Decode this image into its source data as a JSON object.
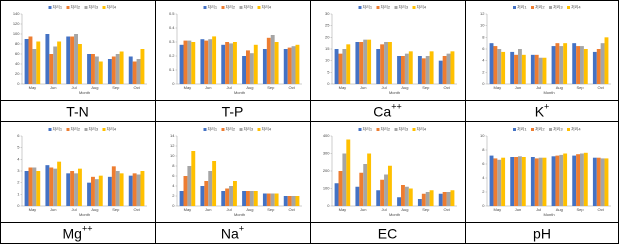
{
  "chart_data": [
    {
      "type": "bar",
      "title": "T-N",
      "x_label": "Month",
      "categories": [
        "May",
        "Jun",
        "Jul",
        "Aug",
        "Sep",
        "Oct"
      ],
      "ylim": [
        0,
        140
      ],
      "yticks": [
        0,
        20,
        40,
        60,
        80,
        100,
        120,
        140
      ],
      "series": [
        {
          "name": "처리1",
          "color": "#4472c4",
          "values": [
            90,
            100,
            95,
            60,
            50,
            55
          ]
        },
        {
          "name": "처리2",
          "color": "#ed7d31",
          "values": [
            95,
            60,
            95,
            60,
            55,
            45
          ]
        },
        {
          "name": "처리3",
          "color": "#a5a5a5",
          "values": [
            70,
            75,
            100,
            55,
            60,
            50
          ]
        },
        {
          "name": "처리4",
          "color": "#ffc000",
          "values": [
            85,
            85,
            80,
            45,
            65,
            70
          ]
        }
      ]
    },
    {
      "type": "bar",
      "title": "T-P",
      "x_label": "Month",
      "categories": [
        "May",
        "Jun",
        "Jul",
        "Aug",
        "Sep",
        "Oct"
      ],
      "ylim": [
        0,
        0.5
      ],
      "yticks": [
        0,
        0.1,
        0.2,
        0.3,
        0.4,
        0.5
      ],
      "series": [
        {
          "name": "처리1",
          "color": "#4472c4",
          "values": [
            0.28,
            0.32,
            0.28,
            0.2,
            0.25,
            0.25
          ]
        },
        {
          "name": "처리2",
          "color": "#ed7d31",
          "values": [
            0.31,
            0.31,
            0.3,
            0.24,
            0.33,
            0.26
          ]
        },
        {
          "name": "처리3",
          "color": "#a5a5a5",
          "values": [
            0.31,
            0.32,
            0.29,
            0.22,
            0.35,
            0.27
          ]
        },
        {
          "name": "처리4",
          "color": "#ffc000",
          "values": [
            0.3,
            0.34,
            0.3,
            0.28,
            0.3,
            0.28
          ]
        }
      ]
    },
    {
      "type": "bar",
      "title": "Ca",
      "title_superscript": "++",
      "x_label": "Month",
      "categories": [
        "May",
        "Jun",
        "Jul",
        "Aug",
        "Sep",
        "Oct"
      ],
      "ylim": [
        0,
        30
      ],
      "yticks": [
        0,
        5,
        10,
        15,
        20,
        25,
        30
      ],
      "series": [
        {
          "name": "처리1",
          "color": "#4472c4",
          "values": [
            15,
            18,
            15,
            12,
            12,
            10
          ]
        },
        {
          "name": "처리2",
          "color": "#ed7d31",
          "values": [
            13,
            18,
            17,
            12,
            11,
            12
          ]
        },
        {
          "name": "처리3",
          "color": "#a5a5a5",
          "values": [
            15,
            19,
            18,
            13,
            12,
            13
          ]
        },
        {
          "name": "처리4",
          "color": "#ffc000",
          "values": [
            17,
            19,
            18,
            14,
            14,
            14
          ]
        }
      ]
    },
    {
      "type": "bar",
      "title": "K",
      "title_superscript": "+",
      "x_label": "Month",
      "categories": [
        "May",
        "Jun",
        "Jul",
        "Aug",
        "Sep",
        "Oct"
      ],
      "ylim": [
        0,
        12
      ],
      "yticks": [
        0,
        2,
        4,
        6,
        8,
        10,
        12
      ],
      "series": [
        {
          "name": "처리1",
          "color": "#4472c4",
          "values": [
            7,
            5.5,
            5,
            6.5,
            7,
            5.5
          ]
        },
        {
          "name": "처리2",
          "color": "#ed7d31",
          "values": [
            6.5,
            5,
            5,
            7,
            6.5,
            6
          ]
        },
        {
          "name": "처리3",
          "color": "#a5a5a5",
          "values": [
            6,
            6,
            4.5,
            6.5,
            6.5,
            7
          ]
        },
        {
          "name": "처리4",
          "color": "#ffc000",
          "values": [
            5.5,
            5,
            4.5,
            7,
            6,
            8
          ]
        }
      ]
    },
    {
      "type": "bar",
      "title": "Mg",
      "title_superscript": "++",
      "x_label": "Month",
      "categories": [
        "May",
        "Jun",
        "Jul",
        "Aug",
        "Sep",
        "Oct"
      ],
      "ylim": [
        0,
        6
      ],
      "yticks": [
        0,
        1,
        2,
        3,
        4,
        5,
        6
      ],
      "series": [
        {
          "name": "처리1",
          "color": "#4472c4",
          "values": [
            3,
            3.5,
            2.8,
            2,
            2.5,
            2.6
          ]
        },
        {
          "name": "처리2",
          "color": "#ed7d31",
          "values": [
            3.3,
            3.3,
            3,
            2.5,
            3.4,
            2.8
          ]
        },
        {
          "name": "처리3",
          "color": "#a5a5a5",
          "values": [
            3.3,
            3.2,
            2.8,
            2.3,
            3,
            2.7
          ]
        },
        {
          "name": "처리4",
          "color": "#ffc000",
          "values": [
            3,
            3.8,
            3.2,
            2.6,
            2.8,
            3
          ]
        }
      ]
    },
    {
      "type": "bar",
      "title": "Na",
      "title_superscript": "+",
      "x_label": "Month",
      "categories": [
        "May",
        "Jun",
        "Jul",
        "Aug",
        "Sep",
        "Oct"
      ],
      "ylim": [
        0,
        14
      ],
      "yticks": [
        0,
        2,
        4,
        6,
        8,
        10,
        12,
        14
      ],
      "series": [
        {
          "name": "처리1",
          "color": "#4472c4",
          "values": [
            3,
            4,
            3,
            3,
            2.5,
            2
          ]
        },
        {
          "name": "처리2",
          "color": "#ed7d31",
          "values": [
            6,
            5,
            3.5,
            3,
            2.5,
            2
          ]
        },
        {
          "name": "처리3",
          "color": "#a5a5a5",
          "values": [
            8,
            7,
            4,
            3,
            2.5,
            2
          ]
        },
        {
          "name": "처리4",
          "color": "#ffc000",
          "values": [
            11,
            9,
            5,
            3,
            2.5,
            2
          ]
        }
      ]
    },
    {
      "type": "bar",
      "title": "EC",
      "x_label": "Month",
      "categories": [
        "May",
        "Jun",
        "Jul",
        "Aug",
        "Sep",
        "Oct"
      ],
      "ylim": [
        0,
        400
      ],
      "yticks": [
        0,
        100,
        200,
        300,
        400
      ],
      "series": [
        {
          "name": "처리1",
          "color": "#4472c4",
          "values": [
            130,
            110,
            90,
            50,
            40,
            70
          ]
        },
        {
          "name": "처리2",
          "color": "#ed7d31",
          "values": [
            200,
            190,
            150,
            120,
            70,
            80
          ]
        },
        {
          "name": "처리3",
          "color": "#a5a5a5",
          "values": [
            300,
            240,
            180,
            110,
            80,
            80
          ]
        },
        {
          "name": "처리4",
          "color": "#ffc000",
          "values": [
            380,
            300,
            230,
            100,
            90,
            90
          ]
        }
      ]
    },
    {
      "type": "bar",
      "title": "pH",
      "x_label": "Month",
      "categories": [
        "May",
        "Jun",
        "Jul",
        "Aug",
        "Sep",
        "Oct"
      ],
      "ylim": [
        0,
        10
      ],
      "yticks": [
        0,
        2,
        4,
        6,
        8,
        10
      ],
      "series": [
        {
          "name": "처리1",
          "color": "#4472c4",
          "values": [
            7.2,
            7,
            7,
            7.1,
            7.2,
            6.9
          ]
        },
        {
          "name": "처리2",
          "color": "#ed7d31",
          "values": [
            6.8,
            7,
            6.8,
            7.2,
            7.4,
            6.9
          ]
        },
        {
          "name": "처리3",
          "color": "#a5a5a5",
          "values": [
            6.6,
            7.1,
            6.9,
            7.3,
            7.5,
            6.8
          ]
        },
        {
          "name": "처리4",
          "color": "#ffc000",
          "values": [
            6.9,
            7,
            6.9,
            7.5,
            7.6,
            6.8
          ]
        }
      ]
    }
  ]
}
